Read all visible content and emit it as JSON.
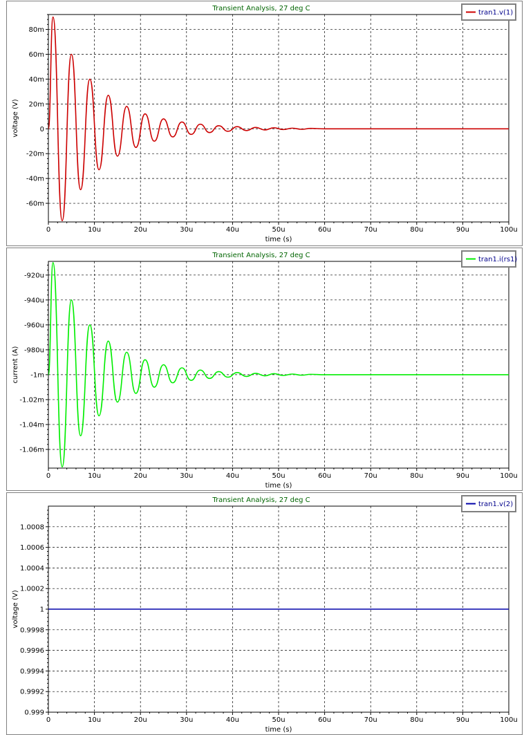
{
  "chart_data": [
    {
      "type": "line",
      "title": "Transient Analysis, 27 deg C",
      "xlabel": "time (s)",
      "ylabel": "voltage (V)",
      "xlim": [
        0,
        100
      ],
      "ylim": [
        -75,
        92
      ],
      "x_ticks": [
        0,
        10,
        20,
        30,
        40,
        50,
        60,
        70,
        80,
        90,
        100
      ],
      "x_tick_labels": [
        "0",
        "10u",
        "20u",
        "30u",
        "40u",
        "50u",
        "60u",
        "70u",
        "80u",
        "90u",
        "100u"
      ],
      "y_ticks": [
        -60,
        -40,
        -20,
        0,
        20,
        40,
        60,
        80
      ],
      "y_tick_labels": [
        "-60m",
        "-40m",
        "-20m",
        "0",
        "20m",
        "40m",
        "60m",
        "80m"
      ],
      "grid": true,
      "legend_position": "top-right",
      "series": [
        {
          "name": "tran1.v(1)",
          "color": "#cc0000",
          "x": [
            0,
            1,
            3,
            5,
            7,
            9,
            11,
            13,
            15,
            17,
            19,
            21,
            23,
            25,
            27,
            29,
            31,
            33,
            35,
            37,
            39,
            41,
            43,
            45,
            47,
            49,
            51,
            53,
            55,
            57,
            60,
            100
          ],
          "y": [
            0,
            90,
            -74,
            60,
            -49,
            40,
            -33,
            27,
            -22,
            18,
            -15,
            12,
            -10,
            8,
            -6.5,
            5.5,
            -4.5,
            3.7,
            -3,
            2.5,
            -2,
            1.7,
            -1.4,
            1.1,
            -0.9,
            0.8,
            -0.6,
            0.5,
            -0.4,
            0.3,
            0,
            0
          ]
        }
      ]
    },
    {
      "type": "line",
      "title": "Transient Analysis, 27 deg C",
      "xlabel": "time (s)",
      "ylabel": "current (A)",
      "xlim": [
        0,
        100
      ],
      "ylim": [
        -1075,
        -909
      ],
      "x_ticks": [
        0,
        10,
        20,
        30,
        40,
        50,
        60,
        70,
        80,
        90,
        100
      ],
      "x_tick_labels": [
        "0",
        "10u",
        "20u",
        "30u",
        "40u",
        "50u",
        "60u",
        "70u",
        "80u",
        "90u",
        "100u"
      ],
      "y_ticks": [
        -1060,
        -1040,
        -1020,
        -1000,
        -980,
        -960,
        -940,
        -920
      ],
      "y_tick_labels": [
        "-1.06m",
        "-1.04m",
        "-1.02m",
        "-1m",
        "-980u",
        "-960u",
        "-940u",
        "-920u"
      ],
      "grid": true,
      "legend_position": "top-right",
      "series": [
        {
          "name": "tran1.i(rs1)",
          "color": "#00ee00",
          "x": [
            0,
            1,
            3,
            5,
            7,
            9,
            11,
            13,
            15,
            17,
            19,
            21,
            23,
            25,
            27,
            29,
            31,
            33,
            35,
            37,
            39,
            41,
            43,
            45,
            47,
            49,
            51,
            53,
            55,
            57,
            60,
            100
          ],
          "y": [
            -1000,
            -910,
            -1074,
            -940,
            -1049,
            -960,
            -1033,
            -973,
            -1022,
            -982,
            -1015,
            -988,
            -1010,
            -992,
            -1006.5,
            -994.5,
            -1004.5,
            -996.3,
            -1003,
            -997.5,
            -1002,
            -998.3,
            -1001.4,
            -998.9,
            -1000.9,
            -999.2,
            -1000.6,
            -999.5,
            -1000.4,
            -999.7,
            -1000,
            -1000
          ]
        }
      ]
    },
    {
      "type": "line",
      "title": "Transient Analysis, 27 deg C",
      "xlabel": "time (s)",
      "ylabel": "voltage (V)",
      "xlim": [
        0,
        100
      ],
      "ylim": [
        0.999,
        1.001
      ],
      "x_ticks": [
        0,
        10,
        20,
        30,
        40,
        50,
        60,
        70,
        80,
        90,
        100
      ],
      "x_tick_labels": [
        "0",
        "10u",
        "20u",
        "30u",
        "40u",
        "50u",
        "60u",
        "70u",
        "80u",
        "90u",
        "100u"
      ],
      "y_ticks": [
        0.999,
        0.9992,
        0.9994,
        0.9996,
        0.9998,
        1.0,
        1.0002,
        1.0004,
        1.0006,
        1.0008
      ],
      "y_tick_labels": [
        "0.999",
        "0.9992",
        "0.9994",
        "0.9996",
        "0.9998",
        "1",
        "1.0002",
        "1.0004",
        "1.0006",
        "1.0008"
      ],
      "grid": true,
      "legend_position": "top-right",
      "series": [
        {
          "name": "tran1.v(2)",
          "color": "#0000aa",
          "x": [
            0,
            100
          ],
          "y": [
            1,
            1
          ]
        }
      ]
    }
  ]
}
